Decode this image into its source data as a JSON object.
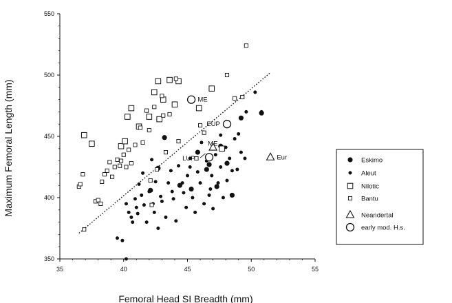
{
  "chart_data": {
    "type": "scatter",
    "xlabel": "Femoral Head SI Breadth (mm)",
    "ylabel": "Maximum Femoral Length (mm)",
    "xlim": [
      35,
      55
    ],
    "ylim": [
      350,
      550
    ],
    "xticks": [
      "35",
      "40",
      "45",
      "50",
      "55"
    ],
    "yticks": [
      "350",
      "400",
      "450",
      "500",
      "550"
    ],
    "grid": false,
    "legend_position": "right",
    "series": [
      {
        "name": "Eskimo",
        "marker": "filled-circle-large",
        "points": [
          [
            43.2,
            449
          ],
          [
            42.7,
            424
          ],
          [
            45.8,
            437
          ],
          [
            46.7,
            427
          ],
          [
            48.1,
            428
          ],
          [
            49.2,
            465
          ],
          [
            50.8,
            469
          ],
          [
            47.6,
            442
          ],
          [
            45.3,
            407
          ],
          [
            46.5,
            423
          ],
          [
            47.3,
            409
          ],
          [
            48.5,
            402
          ],
          [
            42.1,
            406
          ],
          [
            44.4,
            410
          ]
        ]
      },
      {
        "name": "Aleut",
        "marker": "filled-circle-small",
        "points": [
          [
            39.5,
            367
          ],
          [
            39.9,
            365
          ],
          [
            40.2,
            350
          ],
          [
            40.2,
            395
          ],
          [
            40.4,
            388
          ],
          [
            40.6,
            384
          ],
          [
            40.7,
            380
          ],
          [
            40.9,
            399
          ],
          [
            41.0,
            392
          ],
          [
            41.2,
            411
          ],
          [
            41.4,
            402
          ],
          [
            41.5,
            420
          ],
          [
            41.6,
            394
          ],
          [
            41.8,
            380
          ],
          [
            42.0,
            405
          ],
          [
            42.2,
            431
          ],
          [
            42.4,
            388
          ],
          [
            42.5,
            413
          ],
          [
            42.7,
            375
          ],
          [
            42.9,
            401
          ],
          [
            43.0,
            397
          ],
          [
            43.3,
            384
          ],
          [
            43.5,
            412
          ],
          [
            43.7,
            422
          ],
          [
            43.9,
            399
          ],
          [
            44.1,
            381
          ],
          [
            44.3,
            426
          ],
          [
            44.6,
            412
          ],
          [
            44.9,
            392
          ],
          [
            45.0,
            418
          ],
          [
            45.2,
            432
          ],
          [
            45.4,
            400
          ],
          [
            45.6,
            388
          ],
          [
            45.8,
            421
          ],
          [
            46.0,
            412
          ],
          [
            46.1,
            445
          ],
          [
            46.3,
            395
          ],
          [
            46.5,
            430
          ],
          [
            46.7,
            402
          ],
          [
            46.9,
            418
          ],
          [
            47.0,
            391
          ],
          [
            47.2,
            435
          ],
          [
            47.4,
            412
          ],
          [
            47.6,
            425
          ],
          [
            47.8,
            400
          ],
          [
            48.0,
            441
          ],
          [
            48.1,
            414
          ],
          [
            48.3,
            432
          ],
          [
            48.5,
            422
          ],
          [
            48.7,
            448
          ],
          [
            48.9,
            423
          ],
          [
            49.0,
            452
          ],
          [
            49.2,
            437
          ],
          [
            49.5,
            432
          ],
          [
            50.3,
            486
          ],
          [
            50.8,
            470
          ],
          [
            49.6,
            470
          ],
          [
            47.6,
            451
          ],
          [
            46.6,
            432
          ],
          [
            45.2,
            425
          ],
          [
            43.8,
            405
          ],
          [
            42.3,
            395
          ],
          [
            41.1,
            387
          ],
          [
            44.7,
            404
          ],
          [
            46.8,
            407
          ]
        ]
      },
      {
        "name": "Nilotic",
        "marker": "open-square-large",
        "points": [
          [
            36.9,
            451
          ],
          [
            37.5,
            444
          ],
          [
            39.8,
            442
          ],
          [
            40.1,
            446
          ],
          [
            40.3,
            466
          ],
          [
            40.6,
            473
          ],
          [
            42.0,
            466
          ],
          [
            42.4,
            486
          ],
          [
            42.7,
            495
          ],
          [
            42.8,
            464
          ],
          [
            43.6,
            496
          ],
          [
            44.3,
            495
          ],
          [
            46.9,
            489
          ],
          [
            47.7,
            440
          ],
          [
            45.9,
            473
          ],
          [
            44.0,
            476
          ],
          [
            43.1,
            480
          ],
          [
            41.2,
            458
          ]
        ]
      },
      {
        "name": "Bantu",
        "marker": "open-square-small",
        "points": [
          [
            36.5,
            409
          ],
          [
            36.6,
            411
          ],
          [
            36.8,
            419
          ],
          [
            36.9,
            374
          ],
          [
            37.8,
            397
          ],
          [
            38.0,
            398
          ],
          [
            38.2,
            395
          ],
          [
            38.3,
            413
          ],
          [
            38.5,
            419
          ],
          [
            38.7,
            422
          ],
          [
            38.9,
            429
          ],
          [
            39.1,
            417
          ],
          [
            39.3,
            425
          ],
          [
            39.5,
            431
          ],
          [
            39.7,
            426
          ],
          [
            39.8,
            430
          ],
          [
            40.0,
            435
          ],
          [
            40.2,
            425
          ],
          [
            40.4,
            439
          ],
          [
            40.6,
            428
          ],
          [
            40.9,
            443
          ],
          [
            41.3,
            457
          ],
          [
            41.5,
            445
          ],
          [
            41.8,
            471
          ],
          [
            42.0,
            455
          ],
          [
            42.1,
            414
          ],
          [
            42.2,
            394
          ],
          [
            42.4,
            474
          ],
          [
            42.6,
            423
          ],
          [
            43.0,
            483
          ],
          [
            43.1,
            467
          ],
          [
            43.3,
            437
          ],
          [
            43.6,
            468
          ],
          [
            44.1,
            497
          ],
          [
            44.3,
            446
          ],
          [
            46.3,
            453
          ],
          [
            46.0,
            459
          ],
          [
            45.7,
            432
          ],
          [
            48.1,
            500
          ],
          [
            48.7,
            481
          ],
          [
            49.6,
            524
          ],
          [
            49.3,
            482
          ]
        ]
      },
      {
        "name": "Neandertal",
        "marker": "open-triangle",
        "points": [
          [
            47.0,
            441
          ],
          [
            51.5,
            433
          ]
        ]
      },
      {
        "name": "early mod. H.s.",
        "marker": "open-circle",
        "points": [
          [
            45.3,
            480
          ],
          [
            48.1,
            460
          ],
          [
            46.7,
            433
          ]
        ]
      }
    ],
    "annotations": [
      {
        "text": "ME",
        "x": 45.8,
        "y": 480
      },
      {
        "text": "EUP",
        "x": 46.5,
        "y": 460
      },
      {
        "text": "ME",
        "x": 46.6,
        "y": 444
      },
      {
        "text": "LUP",
        "x": 44.6,
        "y": 432
      },
      {
        "text": "Eur",
        "x": 52.0,
        "y": 433
      }
    ],
    "reference_line": {
      "style": "dotted",
      "from": [
        36.5,
        371
      ],
      "to": [
        51.5,
        502
      ]
    }
  }
}
